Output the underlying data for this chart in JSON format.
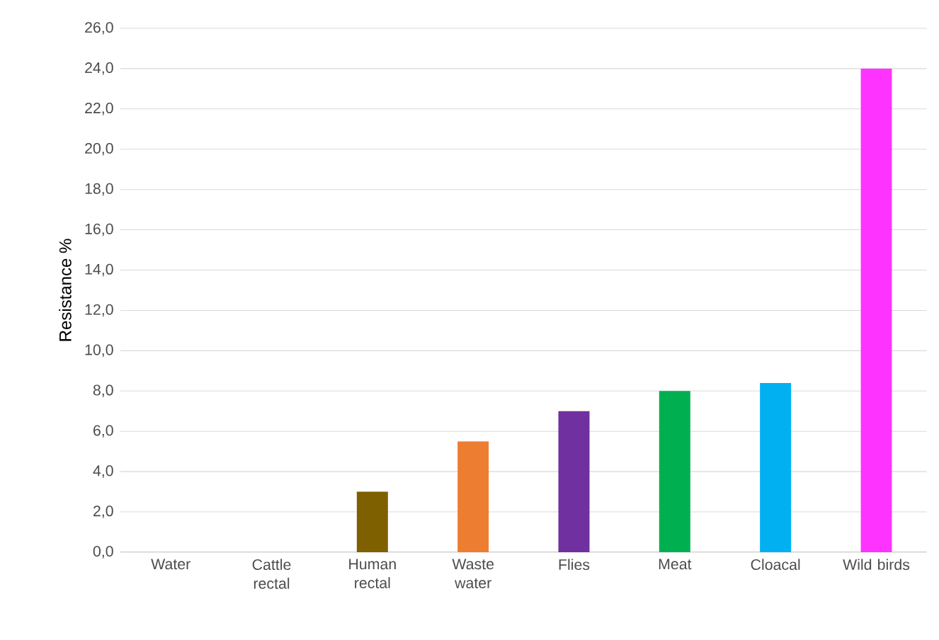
{
  "chart_data": {
    "type": "bar",
    "ylabel": "Resistance %",
    "categories": [
      "Water",
      "Cattle rectal",
      "Human rectal",
      "Waste water",
      "Flies",
      "Meat",
      "Cloacal",
      "Wild birds"
    ],
    "values": [
      0,
      0,
      3.0,
      5.5,
      7.0,
      8.0,
      8.4,
      24.0
    ],
    "colors": [
      "#4472c4",
      "#4472c4",
      "#7f6000",
      "#ed7d31",
      "#7030a0",
      "#00b050",
      "#00b0f0",
      "#ff33ff"
    ],
    "ylim": [
      0,
      26
    ],
    "yticks": [
      {
        "value": 0,
        "label": "0,0"
      },
      {
        "value": 2,
        "label": "2,0"
      },
      {
        "value": 4,
        "label": "4,0"
      },
      {
        "value": 6,
        "label": "6,0"
      },
      {
        "value": 8,
        "label": "8,0"
      },
      {
        "value": 10,
        "label": "10,0"
      },
      {
        "value": 12,
        "label": "12,0"
      },
      {
        "value": 14,
        "label": "14,0"
      },
      {
        "value": 16,
        "label": "16,0"
      },
      {
        "value": 18,
        "label": "18,0"
      },
      {
        "value": 20,
        "label": "20,0"
      },
      {
        "value": 22,
        "label": "22,0"
      },
      {
        "value": 24,
        "label": "24,0"
      },
      {
        "value": 26,
        "label": "26,0"
      }
    ],
    "grid": "y"
  }
}
